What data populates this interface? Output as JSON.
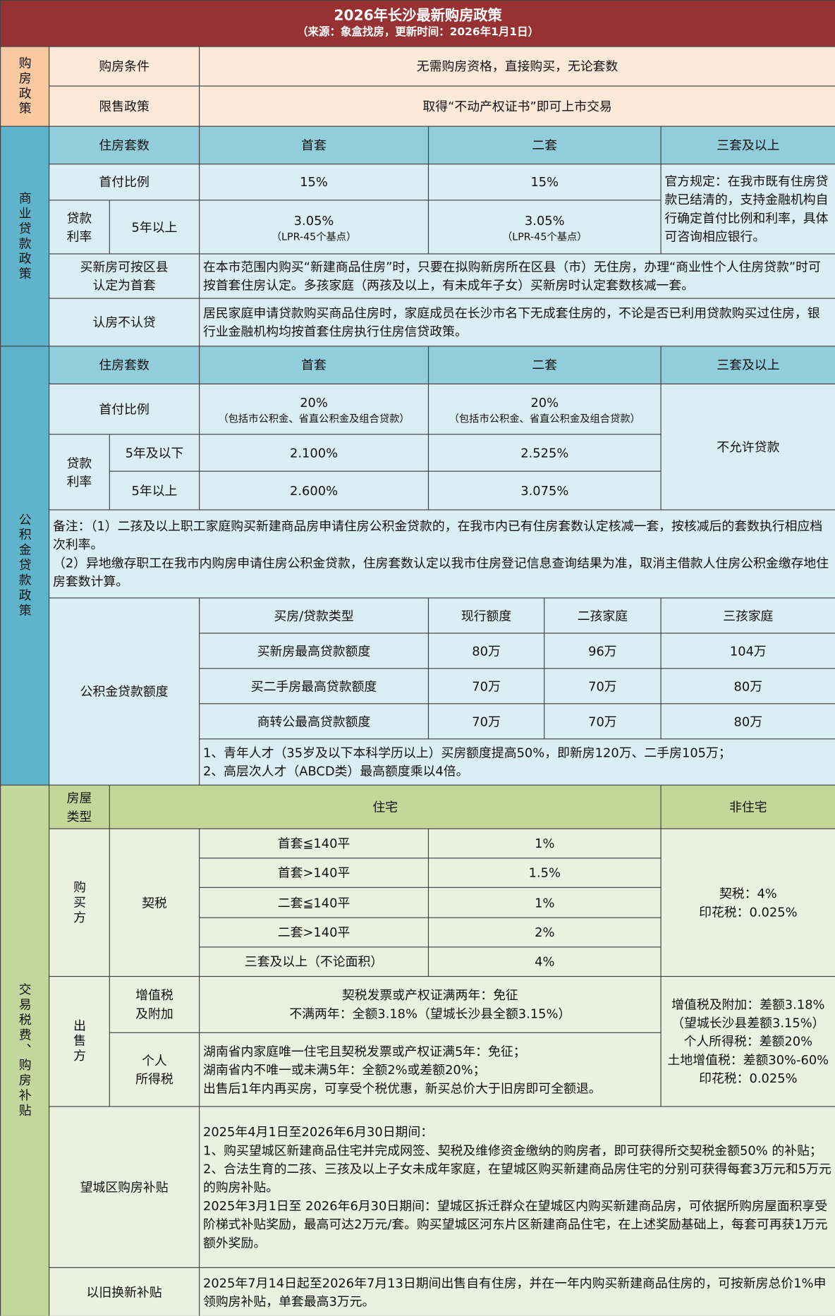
{
  "header": {
    "title": "2026年长沙最新购房政策",
    "subtitle": "（来源：象盒找房，更新时间：2026年1月1日）"
  },
  "purchase": {
    "label": "购房政策",
    "rows": [
      [
        "购房条件",
        "无需购房资格，直接购买，无论套数"
      ],
      [
        "限售政策",
        "取得“不动产权证书”即可上市交易"
      ]
    ]
  },
  "commercial": {
    "label": "商业贷款政策",
    "header": [
      "住房套数",
      "首套",
      "二套",
      "三套及以上"
    ],
    "down_payment": [
      "首付比例",
      "15%",
      "15%"
    ],
    "rate_label": "贷款\n利率",
    "rate_term": "5年以上",
    "rates": [
      [
        "3.05%",
        "（LPR-45个基点）"
      ],
      [
        "3.05%",
        "（LPR-45个基点）"
      ]
    ],
    "third_note": "官方规定：在我市既有住房贷款已结清的，支持金融机构自行确定首付比例和利率，具体可咨询相应银行。",
    "rows": [
      [
        "买新房可按区县\n认定为首套",
        "在本市范围内购买“新建商品住房”时，只要在拟购新房所在区县（市）无住房，办理“商业性个人住房贷款”时可按首套住房认定。多孩家庭（两孩及以上，有未成年子女）买新房时认定套数核减一套。"
      ],
      [
        "认房不认贷",
        "居民家庭申请贷款购买商品住房时，家庭成员在长沙市名下无成套住房的，不论是否已利用贷款购买过住房，银行业金融机构均按首套住房执行住房信贷政策。"
      ]
    ]
  },
  "fund": {
    "label": "公积金贷款政策",
    "header": [
      "住房套数",
      "首套",
      "二套",
      "三套及以上"
    ],
    "down_label": "首付比例",
    "down_payment": [
      [
        "20%",
        "（包括市公积金、省直公积金及组合贷款）"
      ],
      [
        "20%",
        "（包括市公积金、省直公积金及组合贷款）"
      ]
    ],
    "third": "不允许贷款",
    "rate_label": "贷款\n利率",
    "rates": [
      [
        "5年及以下",
        "2.100%",
        "2.525%"
      ],
      [
        "5年以上",
        "2.600%",
        "3.075%"
      ]
    ],
    "notes": [
      "备注：（1）二孩及以上职工家庭购买新建商品房申请住房公积金贷款的，在我市内已有住房套数认定核减一套，按核减后的套数执行相应档次利率。",
      "（2）异地缴存职工在我市内购房申请住房公积金贷款，住房套数认定以我市住房登记信息查询结果为准，取消主借款人住房公积金缴存地住房套数计算。"
    ],
    "quota_label": "公积金贷款额度",
    "quota_header": [
      "买房/贷款类型",
      "现行额度",
      "二孩家庭",
      "三孩家庭"
    ],
    "quota_rows": [
      [
        "买新房最高贷款额度",
        "80万",
        "96万",
        "104万"
      ],
      [
        "买二手房最高贷款额度",
        "70万",
        "70万",
        "80万"
      ],
      [
        "商转公最高贷款额度",
        "70万",
        "70万",
        "80万"
      ]
    ],
    "quota_notes": [
      "1、青年人才（35岁及以下本科学历以上）买房额度提高50%，即新房120万、二手房105万；",
      "2、高层次人才（ABCD类）最高额度乘以4倍。"
    ]
  },
  "tax": {
    "label": "交易税费、购房补贴",
    "header": [
      "房屋\n类型",
      "住宅",
      "非住宅"
    ],
    "buyer_label": "购买方",
    "deed_label": "契税",
    "deed_rows": [
      [
        "首套≦140平",
        "1%"
      ],
      [
        "首套>140平",
        "1.5%"
      ],
      [
        "二套≦140平",
        "1%"
      ],
      [
        "二套>140平",
        "2%"
      ],
      [
        "三套及以上（不论面积）",
        "4%"
      ]
    ],
    "buyer_nonres": [
      "契税：4%",
      "印花税：0.025%"
    ],
    "seller_label": "出售方",
    "vat_label": "增值税\n及附加",
    "vat": [
      "契税发票或产权证满两年：免征",
      "不满两年：全额3.18%（望城长沙县全额3.15%）"
    ],
    "income_label": "个人\n所得税",
    "income": [
      "湖南省内家庭唯一住宅且契税发票或产权证满5年：免征；",
      "湖南省内不唯一或未满5年：全额2%或差额20%；",
      "出售后1年内再买房，可享受个税优惠，新买总价大于旧房即可全额退。"
    ],
    "seller_nonres": [
      "增值税及附加：差额3.18%",
      "（望城长沙县差额3.15%）",
      "个人所得税：差额20%",
      "土地增值税：差额30%-60%",
      "印花税：0.025%"
    ],
    "subsidy_label": "望城区购房补贴",
    "subsidy": [
      "2025年4月1日至2026年6月30日期间：",
      "1、购买望城区新建商品住宅并完成网签、契税及维修资金缴纳的购房者，即可获得所交契税金额50% 的补贴；",
      "2、合法生育的二孩、三孩及以上子女未成年家庭，在望城区购买新建商品房住宅的分别可获得每套3万元和5万元的购房补贴。",
      "2025年3月1日至 2026年6月30日期间：望城区拆迁群众在望城区内购买新建商品房，可依据所购房屋面积享受阶梯式补贴奖励，最高可达2万元/套。购买望城区河东片区新建商品住宅，在上述奖励基础上，每套可再获1万元额外奖励。"
    ],
    "tradein_label": "以旧换新补贴",
    "tradein": "2025年7月14日起至2026年7月13日期间出售自有住房，并在一年内购买新建商品住房的，可按新房总价1%申领购房补贴，单套最高3万元。"
  }
}
